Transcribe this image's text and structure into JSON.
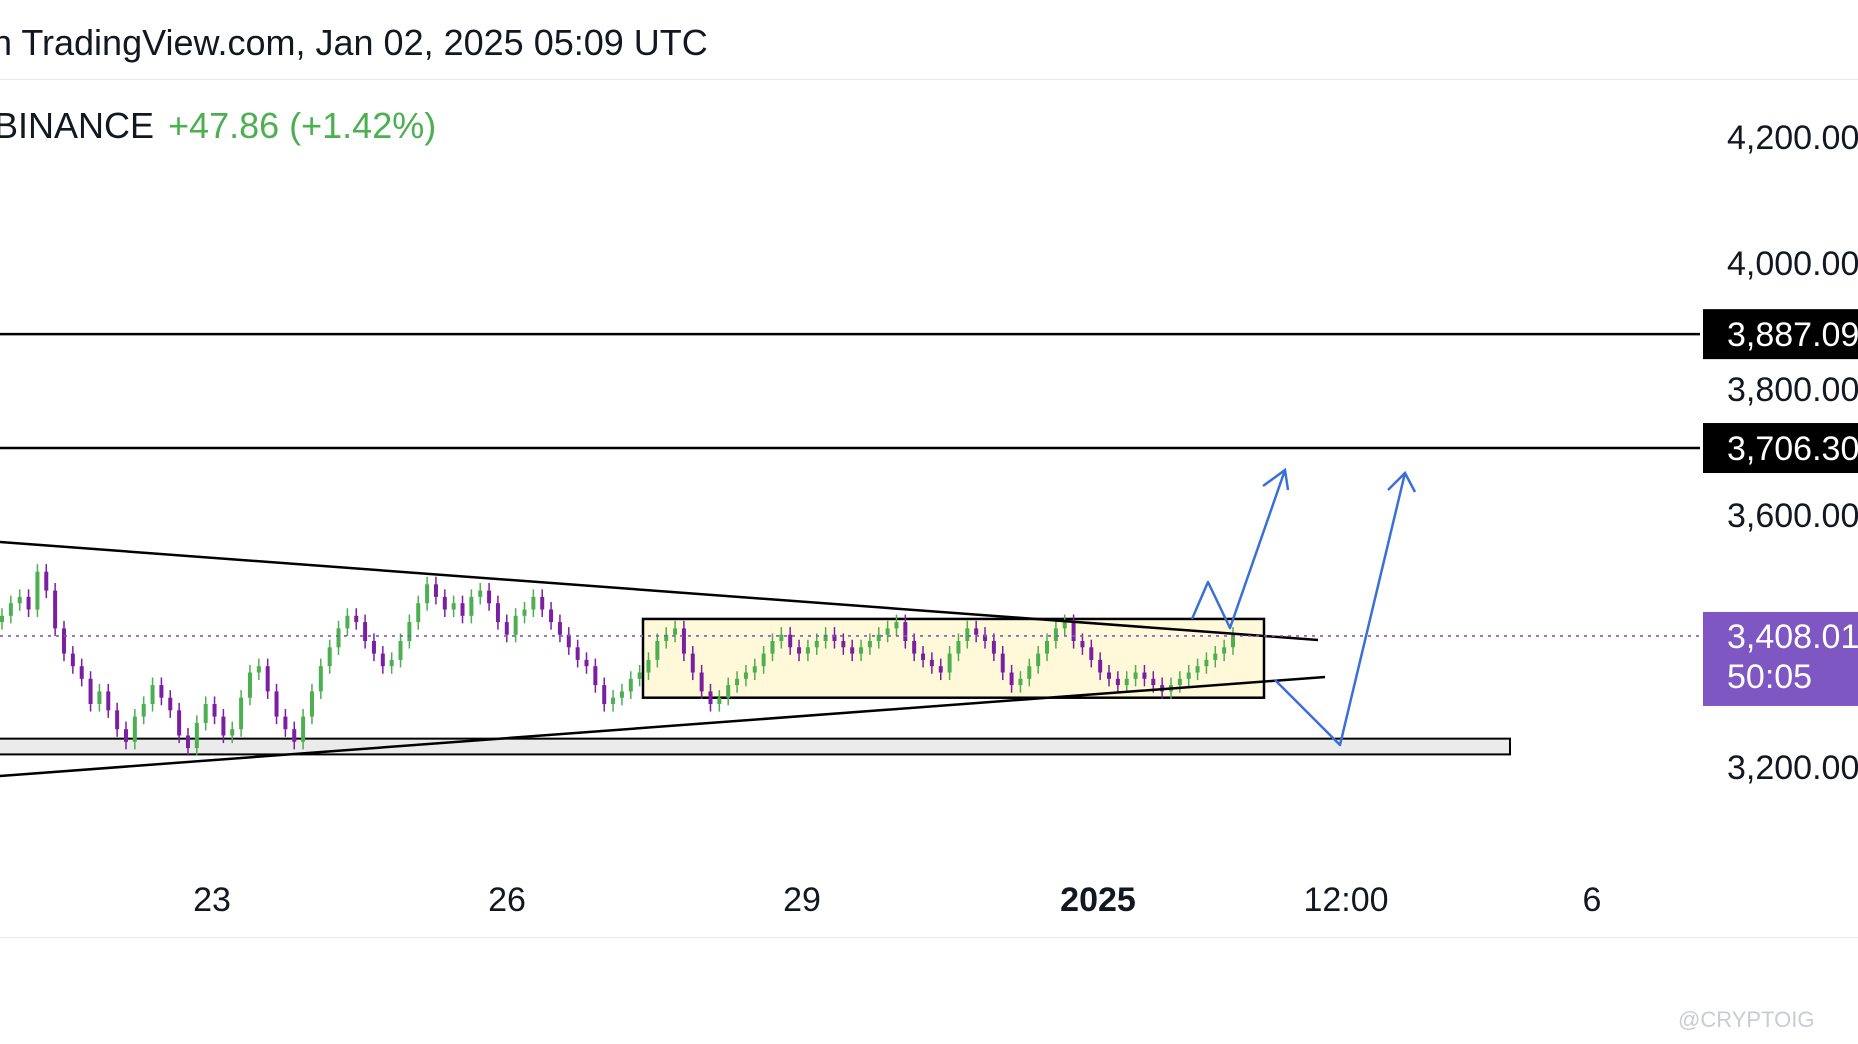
{
  "header": {
    "text": "n TradingView.com, Jan 02, 2025 05:09 UTC"
  },
  "symbol": {
    "exchange": "BINANCE",
    "change": "+47.86 (+1.42%)"
  },
  "watermark": "@CRYPTOIG",
  "colors": {
    "up": "#4caf50",
    "down": "#7b1fa2",
    "arrow": "#3a6fd8",
    "rectangle_fill": "#fff9d9",
    "current_price_tag": "#7e57c2",
    "support_zone_fill": "#ebebeb",
    "level_tag": "#000000"
  },
  "chart_data": {
    "type": "candlestick",
    "price_axis": {
      "ticks": [
        "4,200.00",
        "4,000.00",
        "3,800.00",
        "3,600.00",
        "3,200.00"
      ]
    },
    "time_axis": {
      "ticks": [
        "23",
        "26",
        "29",
        "2025",
        "12:00",
        "6"
      ],
      "bold": [
        "2025"
      ]
    },
    "horizontal_levels": [
      {
        "value": 3887.09,
        "label": "3,887.09"
      },
      {
        "value": 3706.3,
        "label": "3,706.30"
      }
    ],
    "current_price": {
      "value": 3408.01,
      "label": "3,408.01",
      "countdown": "50:05"
    },
    "support_zone": {
      "top": 3245,
      "bottom": 3220
    },
    "consolidation_range": {
      "top": 3435,
      "bottom": 3310
    },
    "candles_close": [
      3440,
      3460,
      3470,
      3450,
      3510,
      3480,
      3420,
      3380,
      3360,
      3340,
      3300,
      3320,
      3290,
      3260,
      3240,
      3280,
      3300,
      3330,
      3310,
      3290,
      3250,
      3230,
      3270,
      3300,
      3280,
      3250,
      3260,
      3310,
      3350,
      3360,
      3320,
      3280,
      3260,
      3240,
      3280,
      3320,
      3360,
      3390,
      3420,
      3440,
      3430,
      3400,
      3380,
      3360,
      3370,
      3400,
      3430,
      3460,
      3490,
      3470,
      3450,
      3460,
      3440,
      3470,
      3480,
      3460,
      3430,
      3410,
      3440,
      3450,
      3470,
      3450,
      3430,
      3410,
      3390,
      3370,
      3360,
      3330,
      3300,
      3310,
      3320,
      3340,
      3350,
      3370,
      3400,
      3410,
      3420,
      3380,
      3350,
      3320,
      3300,
      3310,
      3330,
      3340,
      3350,
      3360,
      3380,
      3400,
      3410,
      3390,
      3380,
      3390,
      3400,
      3410,
      3400,
      3390,
      3380,
      3390,
      3400,
      3410,
      3420,
      3430,
      3400,
      3380,
      3370,
      3360,
      3350,
      3380,
      3400,
      3420,
      3410,
      3400,
      3380,
      3350,
      3330,
      3340,
      3360,
      3380,
      3400,
      3420,
      3430,
      3400,
      3390,
      3370,
      3350,
      3340,
      3330,
      3340,
      3350,
      3340,
      3330,
      3320,
      3330,
      3340,
      3350,
      3360,
      3370,
      3380,
      3390,
      3410
    ]
  }
}
